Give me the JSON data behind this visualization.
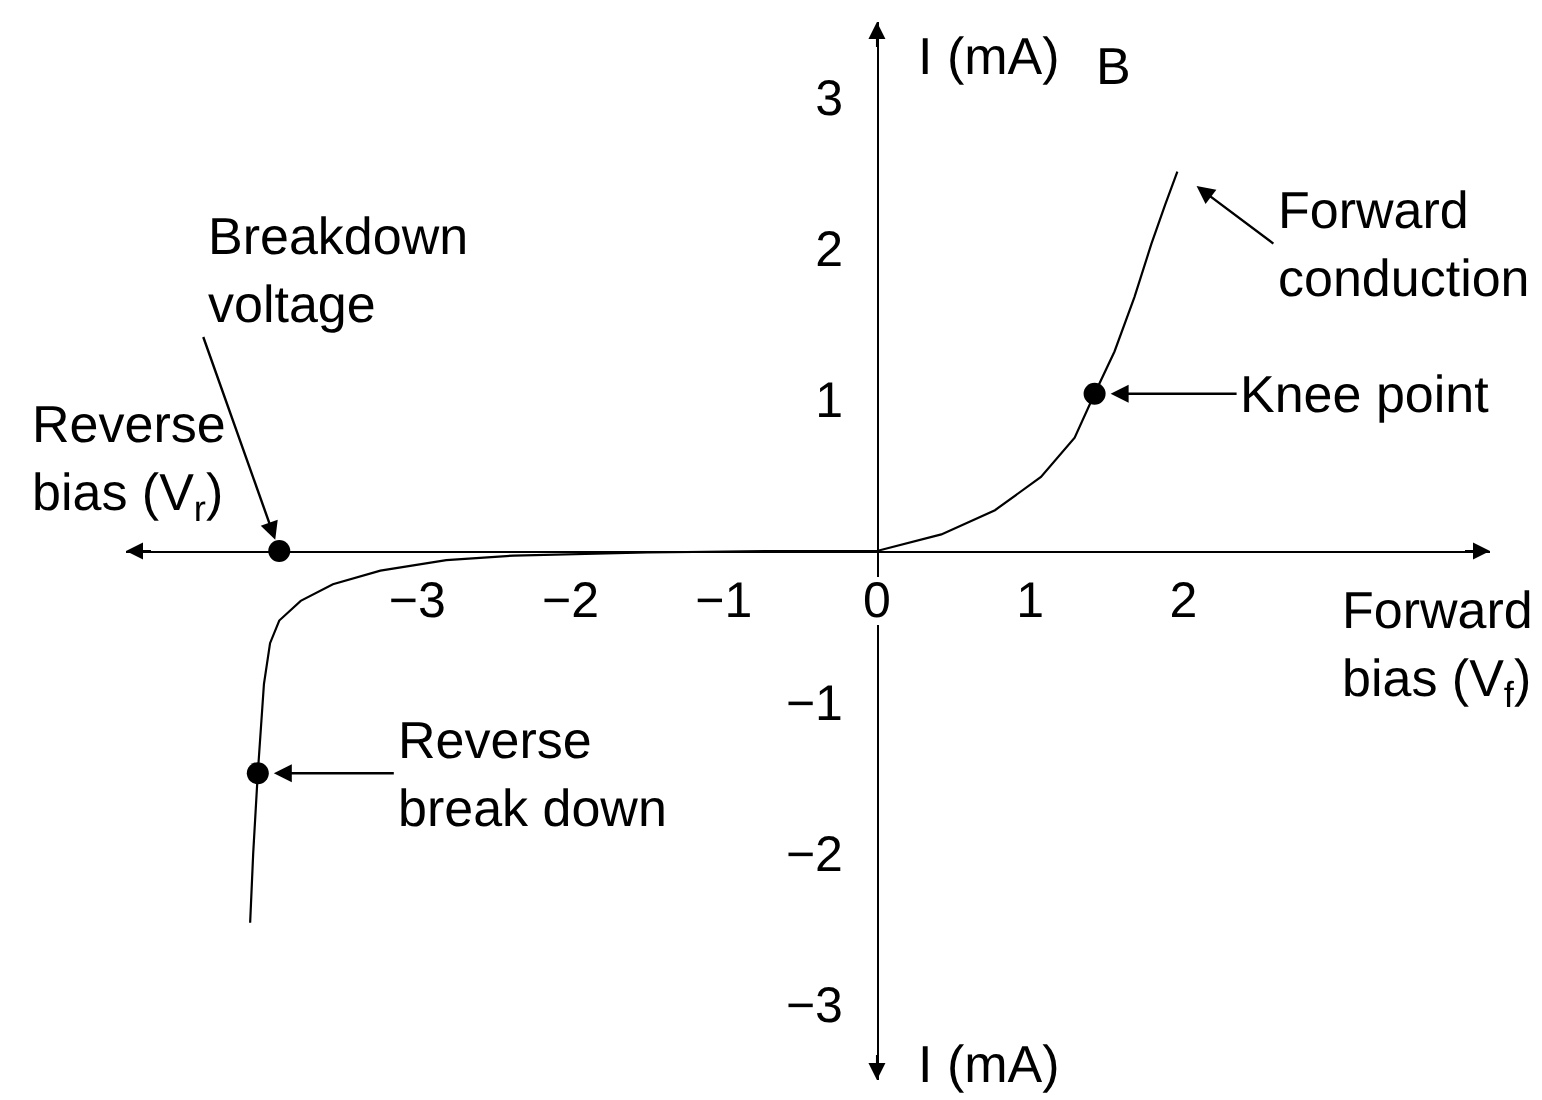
{
  "chart_data": {
    "type": "line",
    "xlabel": "Forward bias (V$_{f}$)",
    "ylabel": "I (mA)",
    "annotations": [
      {
        "text": "Breakdown voltage",
        "x": -3.9,
        "y": 0
      },
      {
        "text": "Forward conduction",
        "x": 1.96,
        "y": 2.51
      },
      {
        "text": "Knee point",
        "x": 1.42,
        "y": 1.04
      },
      {
        "text": "Reverse break down",
        "x": -4.04,
        "y": -1.47
      },
      "Reverse bias (V$_{r}$)",
      "I (mA)",
      "B"
    ],
    "series": [
      {
        "color": "#000000",
        "marker": "none",
        "x": [
          -4.09,
          -4.07,
          -4.04,
          -4.0,
          -3.96,
          -3.9,
          -3.76,
          -3.55,
          -3.24,
          -2.81,
          -2.37,
          -1.5,
          -0.63,
          0,
          0.42,
          0.77,
          1.07,
          1.29,
          1.42,
          1.55,
          1.68,
          1.79,
          1.88,
          1.96
        ],
        "values": [
          -2.46,
          -2.0,
          -1.47,
          -0.88,
          -0.61,
          -0.46,
          -0.33,
          -0.22,
          -0.13,
          -0.06,
          -0.03,
          -0.01,
          0,
          0,
          0.11,
          0.27,
          0.49,
          0.75,
          1.04,
          1.32,
          1.68,
          2.03,
          2.29,
          2.51
        ]
      },
      {
        "type": "scatter",
        "color": "#000000",
        "marker": "circle",
        "x": [
          -3.9,
          1.42,
          -4.04
        ],
        "values": [
          0,
          1.04,
          -1.47
        ]
      }
    ],
    "xlim": [
      -4.9,
      4.0
    ],
    "xticks": [
      -3,
      -2,
      -1,
      0,
      1,
      2
    ],
    "ylim": [
      -3.5,
      3.5
    ],
    "yticks": [
      -3,
      -2,
      -1,
      1,
      2,
      3
    ],
    "grid": false
  }
}
